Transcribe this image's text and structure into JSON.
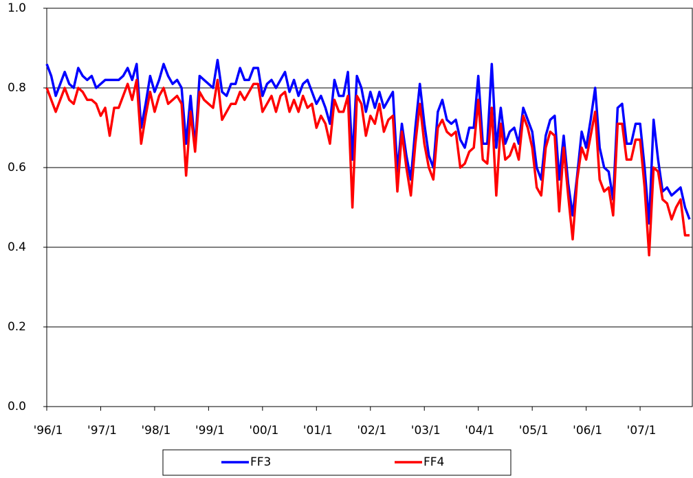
{
  "chart_data": {
    "type": "line",
    "categories": [
      "'96/1",
      null,
      null,
      null,
      null,
      null,
      null,
      null,
      null,
      null,
      null,
      null,
      "'97/1",
      null,
      null,
      null,
      null,
      null,
      null,
      null,
      null,
      null,
      null,
      null,
      "'98/1",
      null,
      null,
      null,
      null,
      null,
      null,
      null,
      null,
      null,
      null,
      null,
      "'99/1",
      null,
      null,
      null,
      null,
      null,
      null,
      null,
      null,
      null,
      null,
      null,
      "'00/1",
      null,
      null,
      null,
      null,
      null,
      null,
      null,
      null,
      null,
      null,
      null,
      "'01/1",
      null,
      null,
      null,
      null,
      null,
      null,
      null,
      null,
      null,
      null,
      null,
      "'02/1",
      null,
      null,
      null,
      null,
      null,
      null,
      null,
      null,
      null,
      null,
      null,
      "'03/1",
      null,
      null,
      null,
      null,
      null,
      null,
      null,
      null,
      null,
      null,
      null,
      "'04/1",
      null,
      null,
      null,
      null,
      null,
      null,
      null,
      null,
      null,
      null,
      null,
      "'05/1",
      null,
      null,
      null,
      null,
      null,
      null,
      null,
      null,
      null,
      null,
      null,
      "'06/1",
      null,
      null,
      null,
      null,
      null,
      null,
      null,
      null,
      null,
      null,
      null,
      "'07/1",
      null,
      null,
      null,
      null,
      null,
      null,
      null,
      null,
      null,
      null,
      null
    ],
    "series": [
      {
        "name": "FF3",
        "color": "#0000ff",
        "values": [
          0.86,
          0.83,
          0.78,
          0.81,
          0.84,
          0.81,
          0.8,
          0.85,
          0.83,
          0.82,
          0.83,
          0.8,
          0.81,
          0.82,
          0.82,
          0.82,
          0.82,
          0.83,
          0.85,
          0.82,
          0.86,
          0.7,
          0.76,
          0.83,
          0.79,
          0.82,
          0.86,
          0.83,
          0.81,
          0.82,
          0.8,
          0.66,
          0.78,
          0.65,
          0.83,
          0.82,
          0.81,
          0.8,
          0.87,
          0.79,
          0.78,
          0.81,
          0.81,
          0.85,
          0.82,
          0.82,
          0.85,
          0.85,
          0.78,
          0.81,
          0.82,
          0.8,
          0.82,
          0.84,
          0.79,
          0.82,
          0.78,
          0.81,
          0.82,
          0.79,
          0.76,
          0.78,
          0.75,
          0.71,
          0.82,
          0.78,
          0.78,
          0.84,
          0.62,
          0.83,
          0.8,
          0.74,
          0.79,
          0.75,
          0.79,
          0.75,
          0.77,
          0.79,
          0.59,
          0.71,
          0.63,
          0.57,
          0.7,
          0.81,
          0.71,
          0.63,
          0.6,
          0.74,
          0.77,
          0.72,
          0.71,
          0.72,
          0.67,
          0.65,
          0.7,
          0.7,
          0.83,
          0.66,
          0.66,
          0.86,
          0.65,
          0.75,
          0.66,
          0.69,
          0.7,
          0.66,
          0.75,
          0.72,
          0.69,
          0.6,
          0.57,
          0.68,
          0.72,
          0.73,
          0.57,
          0.68,
          0.56,
          0.48,
          0.58,
          0.69,
          0.65,
          0.72,
          0.8,
          0.65,
          0.6,
          0.59,
          0.52,
          0.75,
          0.76,
          0.66,
          0.66,
          0.71,
          0.71,
          0.6,
          0.46,
          0.72,
          0.62,
          0.54,
          0.55,
          0.53,
          0.54,
          0.55,
          0.5,
          0.47
        ]
      },
      {
        "name": "FF4",
        "color": "#ff0000",
        "values": [
          0.8,
          0.77,
          0.74,
          0.77,
          0.8,
          0.77,
          0.76,
          0.8,
          0.79,
          0.77,
          0.77,
          0.76,
          0.73,
          0.75,
          0.68,
          0.75,
          0.75,
          0.78,
          0.81,
          0.77,
          0.82,
          0.66,
          0.73,
          0.79,
          0.74,
          0.78,
          0.8,
          0.76,
          0.77,
          0.78,
          0.76,
          0.58,
          0.74,
          0.64,
          0.79,
          0.77,
          0.76,
          0.75,
          0.82,
          0.72,
          0.74,
          0.76,
          0.76,
          0.79,
          0.77,
          0.79,
          0.81,
          0.81,
          0.74,
          0.76,
          0.78,
          0.74,
          0.78,
          0.79,
          0.74,
          0.77,
          0.74,
          0.78,
          0.75,
          0.76,
          0.7,
          0.73,
          0.71,
          0.66,
          0.77,
          0.74,
          0.74,
          0.78,
          0.5,
          0.78,
          0.76,
          0.68,
          0.73,
          0.71,
          0.76,
          0.69,
          0.72,
          0.73,
          0.54,
          0.69,
          0.6,
          0.53,
          0.66,
          0.76,
          0.66,
          0.6,
          0.57,
          0.7,
          0.72,
          0.69,
          0.68,
          0.69,
          0.6,
          0.61,
          0.64,
          0.65,
          0.77,
          0.62,
          0.61,
          0.75,
          0.53,
          0.71,
          0.62,
          0.63,
          0.66,
          0.62,
          0.73,
          0.7,
          0.65,
          0.55,
          0.53,
          0.65,
          0.69,
          0.68,
          0.49,
          0.65,
          0.53,
          0.42,
          0.57,
          0.65,
          0.62,
          0.68,
          0.74,
          0.57,
          0.54,
          0.55,
          0.48,
          0.71,
          0.71,
          0.62,
          0.62,
          0.67,
          0.67,
          0.55,
          0.38,
          0.6,
          0.59,
          0.52,
          0.51,
          0.47,
          0.5,
          0.52,
          0.43,
          0.43
        ]
      }
    ],
    "ylim": [
      0,
      1.0
    ],
    "yticks": [
      {
        "value": 0,
        "label": "0.0"
      },
      0.2,
      0.4,
      0.6,
      0.8,
      {
        "value": 1.0,
        "label": "1.0"
      }
    ],
    "grid": true,
    "legend": "bottom"
  }
}
